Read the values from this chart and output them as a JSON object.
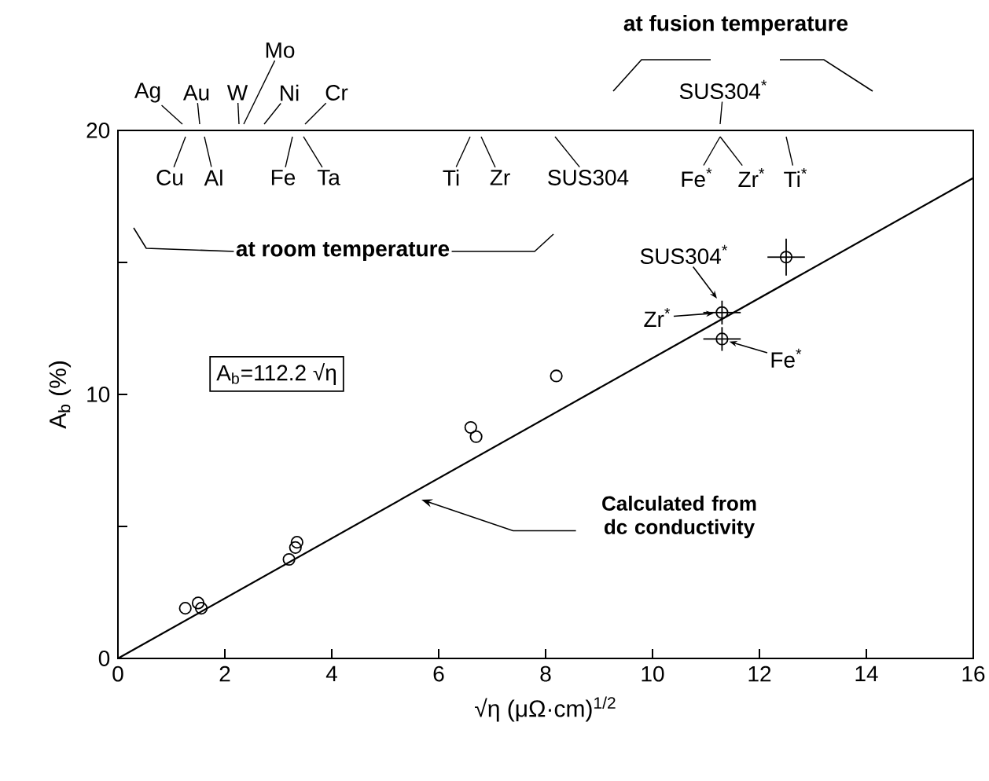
{
  "chart_data": {
    "type": "scatter",
    "xlabel": "√η  (μΩ·cm)$^{1/2}$",
    "ylabel": "A$_{b}$ (%)",
    "xlim": [
      0,
      16
    ],
    "ylim": [
      0,
      20
    ],
    "xticks": [
      0,
      2,
      4,
      6,
      8,
      10,
      12,
      14,
      16
    ],
    "yticks": [
      0,
      {
        "value": 5,
        "label": null
      },
      10,
      {
        "value": 15,
        "label": null
      },
      20
    ],
    "marker": "circle",
    "series": [
      {
        "type": "line",
        "marker": "none",
        "color": "#000000",
        "x": [
          0,
          16
        ],
        "values": [
          0,
          18.2
        ]
      },
      {
        "color": "#000000",
        "x": [
          1.26,
          1.5,
          1.56,
          3.2,
          3.32,
          3.35,
          6.6,
          6.7,
          8.2
        ],
        "values": [
          1.9,
          2.1,
          1.9,
          3.75,
          4.2,
          4.4,
          8.75,
          8.4,
          10.7
        ]
      },
      {
        "color": "#000000",
        "x": [
          11.3,
          11.3,
          12.5
        ],
        "values": [
          13.1,
          12.1,
          15.2
        ],
        "errors": [
          0.45,
          0.45,
          0.7
        ],
        "xerrors": [
          0.35,
          0.35,
          0.35
        ]
      }
    ],
    "annotations": [
      "at fusion temperature",
      "at room temperature",
      "Calculated from dc conductivity",
      "A$_{b}$=112.2 √η",
      "Ag",
      "Au",
      "W",
      "Mo",
      "Ni",
      "Cr",
      "SUS304$^{*}$",
      "Cu",
      "Al",
      "Fe",
      "Ta",
      "Ti",
      "Zr",
      "SUS304",
      "Fe$^{*}$",
      "Zr$^{*}$",
      "Ti$^{*}$",
      "SUS304$^{*}$",
      "Zr$^{*}$",
      "Fe$^{*}$"
    ]
  }
}
